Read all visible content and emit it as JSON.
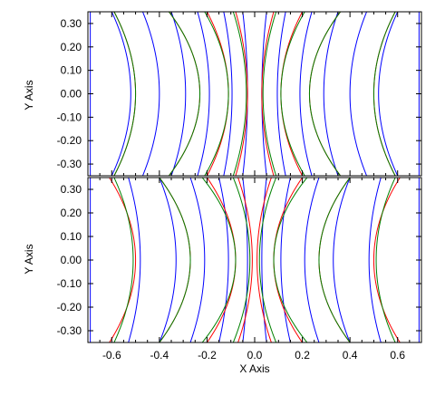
{
  "chart_data": [
    {
      "type": "line",
      "panel": "top",
      "xlabel": "",
      "ylabel": "Y Axis",
      "xlim": [
        -0.7,
        0.7
      ],
      "ylim": [
        -0.35,
        0.35
      ],
      "y_ticks": [
        "0.30",
        "0.20",
        "0.10",
        "0.00",
        "-0.10",
        "-0.20",
        "-0.30"
      ],
      "y_tick_values": [
        0.3,
        0.2,
        0.1,
        0.0,
        -0.1,
        -0.2,
        -0.3
      ],
      "grid": false,
      "series": [
        {
          "color": "#0000ff",
          "curves": [
            {
              "x0": -0.69,
              "d": 0.0
            },
            {
              "x0": -0.6,
              "d": 0.08
            },
            {
              "x0": -0.47,
              "d": 0.07
            },
            {
              "x0": -0.35,
              "d": 0.06
            },
            {
              "x0": -0.24,
              "d": 0.05
            },
            {
              "x0": -0.13,
              "d": 0.035
            },
            {
              "x0": -0.05,
              "d": 0.02
            },
            {
              "x0": 0.05,
              "d": -0.02
            },
            {
              "x0": 0.13,
              "d": -0.035
            },
            {
              "x0": 0.24,
              "d": -0.05
            },
            {
              "x0": 0.35,
              "d": -0.06
            },
            {
              "x0": 0.47,
              "d": -0.07
            },
            {
              "x0": 0.6,
              "d": -0.08
            },
            {
              "x0": 0.69,
              "d": 0.0
            }
          ]
        },
        {
          "color": "#ff0000",
          "curves": [
            {
              "x0": -0.59,
              "d": 0.09
            },
            {
              "x0": -0.36,
              "d": 0.13
            },
            {
              "x0": -0.2,
              "d": 0.09
            },
            {
              "x0": -0.08,
              "d": 0.05
            },
            {
              "x0": 0.08,
              "d": -0.05
            },
            {
              "x0": 0.2,
              "d": -0.09
            },
            {
              "x0": 0.36,
              "d": -0.13
            },
            {
              "x0": 0.59,
              "d": -0.09
            }
          ]
        },
        {
          "color": "#008000",
          "curves": [
            {
              "x0": -0.59,
              "d": 0.09
            },
            {
              "x0": -0.36,
              "d": 0.13
            },
            {
              "x0": -0.21,
              "d": 0.1
            },
            {
              "x0": -0.09,
              "d": 0.055
            },
            {
              "x0": 0.09,
              "d": -0.055
            },
            {
              "x0": 0.21,
              "d": -0.1
            },
            {
              "x0": 0.36,
              "d": -0.13
            },
            {
              "x0": 0.59,
              "d": -0.09
            }
          ]
        }
      ]
    },
    {
      "type": "line",
      "panel": "bottom",
      "xlabel": "X Axis",
      "ylabel": "Y Axis",
      "xlim": [
        -0.7,
        0.7
      ],
      "ylim": [
        -0.35,
        0.35
      ],
      "x_ticks": [
        "-0.6",
        "-0.4",
        "-0.2",
        "0.0",
        "0.2",
        "0.4",
        "0.6"
      ],
      "x_tick_values": [
        -0.6,
        -0.4,
        -0.2,
        0.0,
        0.2,
        0.4,
        0.6
      ],
      "y_ticks": [
        "0.30",
        "0.20",
        "0.10",
        "0.00",
        "-0.10",
        "-0.20",
        "-0.30"
      ],
      "y_tick_values": [
        0.3,
        0.2,
        0.1,
        0.0,
        -0.1,
        -0.2,
        -0.3
      ],
      "grid": false,
      "series": [
        {
          "color": "#0000ff",
          "curves": [
            {
              "x0": -0.69,
              "d": 0.0
            },
            {
              "x0": -0.53,
              "d": 0.05
            },
            {
              "x0": -0.4,
              "d": 0.07
            },
            {
              "x0": -0.27,
              "d": 0.06
            },
            {
              "x0": -0.15,
              "d": 0.04
            },
            {
              "x0": -0.05,
              "d": 0.02
            },
            {
              "x0": 0.05,
              "d": -0.02
            },
            {
              "x0": 0.15,
              "d": -0.04
            },
            {
              "x0": 0.27,
              "d": -0.06
            },
            {
              "x0": 0.4,
              "d": -0.07
            },
            {
              "x0": 0.53,
              "d": -0.05
            },
            {
              "x0": 0.69,
              "d": 0.0
            }
          ]
        },
        {
          "color": "#ff0000",
          "curves": [
            {
              "x0": -0.61,
              "d": 0.11
            },
            {
              "x0": -0.4,
              "d": 0.13
            },
            {
              "x0": -0.2,
              "d": 0.12
            },
            {
              "x0": -0.07,
              "d": 0.06
            },
            {
              "x0": 0.07,
              "d": -0.06
            },
            {
              "x0": 0.2,
              "d": -0.12
            },
            {
              "x0": 0.4,
              "d": -0.13
            },
            {
              "x0": 0.61,
              "d": -0.11
            }
          ]
        },
        {
          "color": "#008000",
          "curves": [
            {
              "x0": -0.59,
              "d": 0.08
            },
            {
              "x0": -0.4,
              "d": 0.13
            },
            {
              "x0": -0.22,
              "d": 0.14
            },
            {
              "x0": -0.09,
              "d": 0.07
            },
            {
              "x0": 0.09,
              "d": -0.07
            },
            {
              "x0": 0.22,
              "d": -0.14
            },
            {
              "x0": 0.4,
              "d": -0.13
            },
            {
              "x0": 0.59,
              "d": -0.08
            }
          ]
        }
      ]
    }
  ]
}
